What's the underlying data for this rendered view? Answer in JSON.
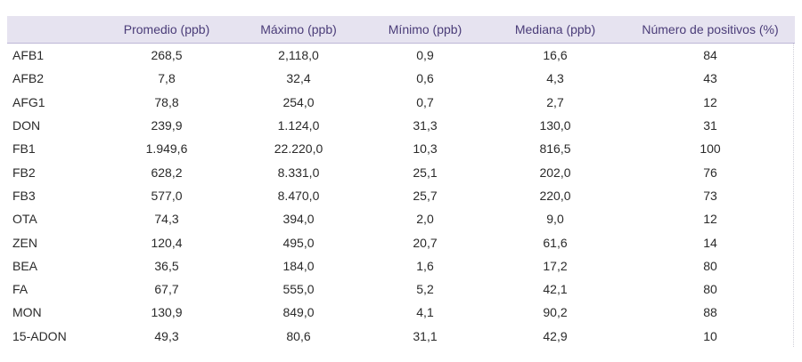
{
  "table": {
    "headers": [
      "",
      "Promedio (ppb)",
      "Máximo (ppb)",
      "Mínimo (ppb)",
      "Mediana (ppb)",
      "Número de positivos (%)"
    ],
    "rows": [
      [
        "AFB1",
        "268,5",
        "2,118,0",
        "0,9",
        "16,6",
        "84"
      ],
      [
        "AFB2",
        "7,8",
        "32,4",
        "0,6",
        "4,3",
        "43"
      ],
      [
        "AFG1",
        "78,8",
        "254,0",
        "0,7",
        "2,7",
        "12"
      ],
      [
        "DON",
        "239,9",
        "1.124,0",
        "31,3",
        "130,0",
        "31"
      ],
      [
        "FB1",
        "1.949,6",
        "22.220,0",
        "10,3",
        "816,5",
        "100"
      ],
      [
        "FB2",
        "628,2",
        "8.331,0",
        "25,1",
        "202,0",
        "76"
      ],
      [
        "FB3",
        "577,0",
        "8.470,0",
        "25,7",
        "220,0",
        "73"
      ],
      [
        "OTA",
        "74,3",
        "394,0",
        "2,0",
        "9,0",
        "12"
      ],
      [
        "ZEN",
        "120,4",
        "495,0",
        "20,7",
        "61,6",
        "14"
      ],
      [
        "BEA",
        "36,5",
        "184,0",
        "1,6",
        "17,2",
        "80"
      ],
      [
        "FA",
        "67,7",
        "555,0",
        "5,2",
        "42,1",
        "80"
      ],
      [
        "MON",
        "130,9",
        "849,0",
        "4,1",
        "90,2",
        "88"
      ],
      [
        "15-ADON",
        "49,3",
        "80,6",
        "31,1",
        "42,9",
        "10"
      ]
    ]
  },
  "colors": {
    "header_bg": "#e6e3f0",
    "header_text": "#4a3c78",
    "body_text": "#2a2a2a"
  }
}
